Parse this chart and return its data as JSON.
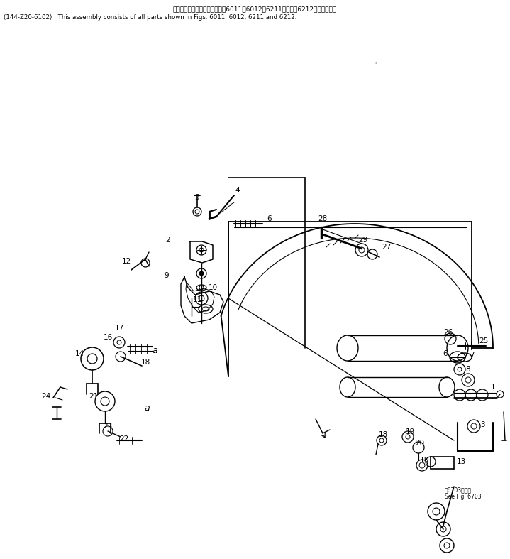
{
  "title_jp": "このアセンブリの構成部品は第6011、6012、6211および第6212図を含みます",
  "title_en": "(144-Z20-6102) : This assembly consists of all parts shown in Figs. 6011, 6012, 6211 and 6212.",
  "see_fig_jp": "第6703図参照",
  "see_fig_en": "See Fig. 6703",
  "bg_color": "#ffffff",
  "line_color": "#000000",
  "fig_width": 7.19,
  "fig_height": 7.87,
  "dpi": 100
}
